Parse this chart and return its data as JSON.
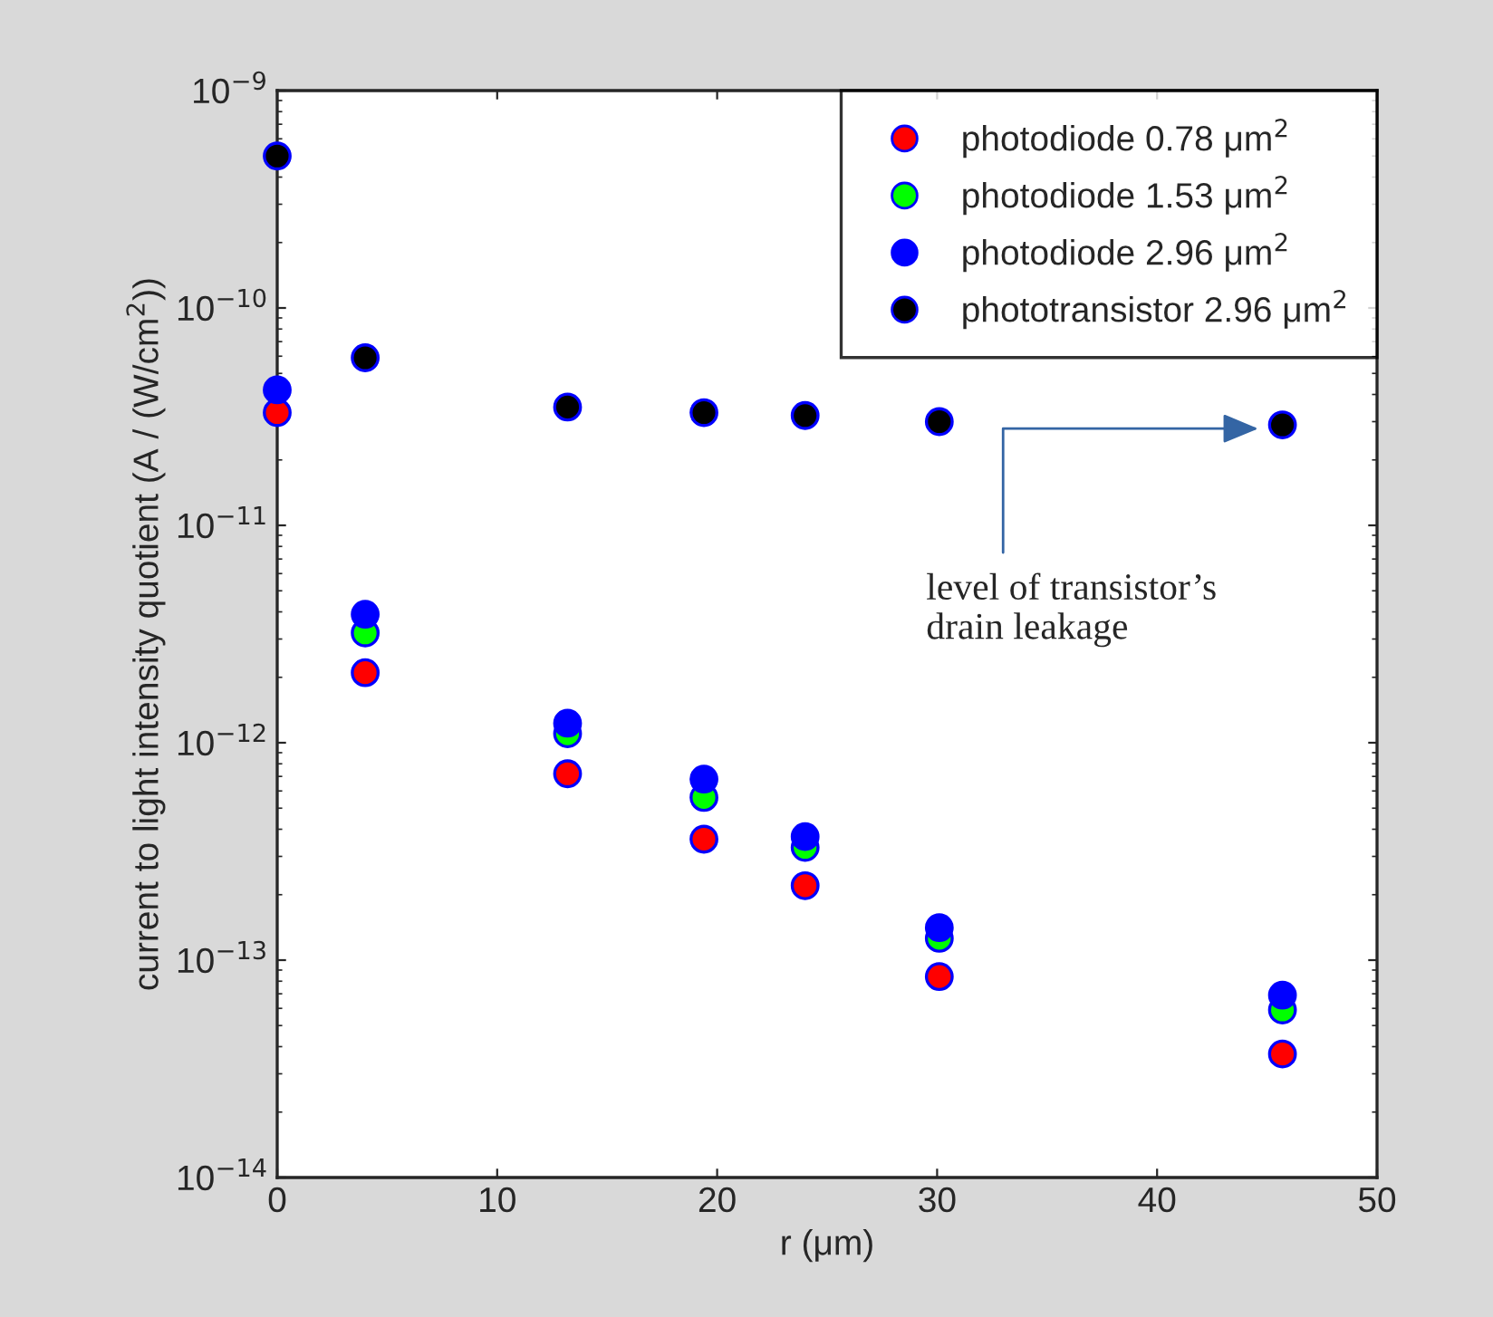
{
  "chart_data": {
    "type": "scatter",
    "xlabel": "r (μm)",
    "ylabel": "current to light intensity quotient (A / (W/cm$^{2}$))",
    "x": [
      0,
      4,
      13.2,
      19.4,
      24,
      30.1,
      45.7
    ],
    "series": [
      {
        "name": "photodiode 0.78 μm$^{2}$",
        "color": "#ff0000",
        "values": [
          3.3e-11,
          2.1e-12,
          7.2e-13,
          3.6e-13,
          2.2e-13,
          8.4e-14,
          3.7e-14
        ]
      },
      {
        "name": "photodiode 1.53 μm$^{2}$",
        "color": "#00ff00",
        "values": [
          null,
          3.2e-12,
          1.1e-12,
          5.6e-13,
          3.3e-13,
          1.26e-13,
          5.9e-14
        ]
      },
      {
        "name": "photodiode 2.96 μm$^{2}$",
        "color": "#0000ff",
        "values": [
          4.2e-11,
          3.9e-12,
          1.23e-12,
          6.8e-13,
          3.7e-13,
          1.41e-13,
          6.9e-14
        ]
      },
      {
        "name": "phototransistor 2.96 μm$^{2}$",
        "color": "#000000",
        "values": [
          5e-10,
          5.9e-11,
          3.5e-11,
          3.3e-11,
          3.2e-11,
          3e-11,
          2.9e-11
        ]
      }
    ],
    "log": "y",
    "xlim": [
      0,
      50
    ],
    "xticks": [
      0,
      10,
      20,
      30,
      40,
      50
    ],
    "ylim": [
      1e-14,
      1e-09
    ],
    "yticks": [
      {
        "value": 1e-14,
        "label": "10$^{−14}$"
      },
      {
        "value": 1e-13,
        "label": "10$^{−13}$"
      },
      {
        "value": 1e-12,
        "label": "10$^{−12}$"
      },
      {
        "value": 1e-11,
        "label": "10$^{−11}$"
      },
      {
        "value": 1e-10,
        "label": "10$^{−10}$"
      },
      {
        "value": 1e-09,
        "label": "10$^{−9}$"
      }
    ],
    "annotations": [
      "level of transistor’s\ndrain leakage"
    ],
    "marker": "circle",
    "grid": false,
    "legend": "top right"
  }
}
